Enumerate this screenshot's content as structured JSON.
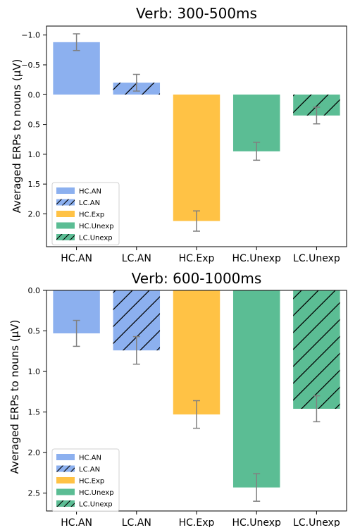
{
  "colors": {
    "HC.AN": "#8cb0ef",
    "LC.AN": "#8cb0ef",
    "HC.Exp": "#ffc245",
    "HC.Unexp": "#5bbd94",
    "LC.Unexp": "#5bbd94",
    "error_bar": "#808080"
  },
  "chart_data": [
    {
      "type": "bar",
      "title": "Verb: 300-500ms",
      "xlabel": "",
      "ylabel": "Averaged ERPs to nouns (µV)",
      "categories": [
        "HC.AN",
        "LC.AN",
        "HC.Exp",
        "HC.Unexp",
        "LC.Unexp"
      ],
      "values": [
        -0.88,
        -0.2,
        2.12,
        0.95,
        0.35
      ],
      "error": [
        0.14,
        0.14,
        0.17,
        0.15,
        0.14
      ],
      "hatched": [
        false,
        true,
        false,
        false,
        true
      ],
      "y_inverted": true,
      "ylim": [
        -1.15,
        2.55
      ],
      "yticks": [
        -1.0,
        -0.5,
        0.0,
        0.5,
        1.0,
        1.5,
        2.0
      ],
      "ytick_labels": [
        "−1.0",
        "−0.5",
        "0.0",
        "0.5",
        "1.0",
        "1.5",
        "2.0"
      ],
      "legend": [
        "HC.AN",
        "LC.AN",
        "HC.Exp",
        "HC.Unexp",
        "LC.Unexp"
      ],
      "legend_position": "bottom-left"
    },
    {
      "type": "bar",
      "title": "Verb: 600-1000ms",
      "xlabel": "",
      "ylabel": "Averaged ERPs to nouns (µV)",
      "categories": [
        "HC.AN",
        "LC.AN",
        "HC.Exp",
        "HC.Unexp",
        "LC.Unexp"
      ],
      "values": [
        0.53,
        0.74,
        1.53,
        2.43,
        1.46
      ],
      "error": [
        0.16,
        0.17,
        0.17,
        0.17,
        0.16
      ],
      "hatched": [
        false,
        true,
        false,
        false,
        true
      ],
      "y_inverted": true,
      "ylim": [
        0.0,
        2.72
      ],
      "yticks": [
        0.0,
        0.5,
        1.0,
        1.5,
        2.0,
        2.5
      ],
      "ytick_labels": [
        "0.0",
        "0.5",
        "1.0",
        "1.5",
        "2.0",
        "2.5"
      ],
      "legend": [
        "HC.AN",
        "LC.AN",
        "HC.Exp",
        "HC.Unexp",
        "LC.Unexp"
      ],
      "legend_position": "bottom-left"
    }
  ]
}
